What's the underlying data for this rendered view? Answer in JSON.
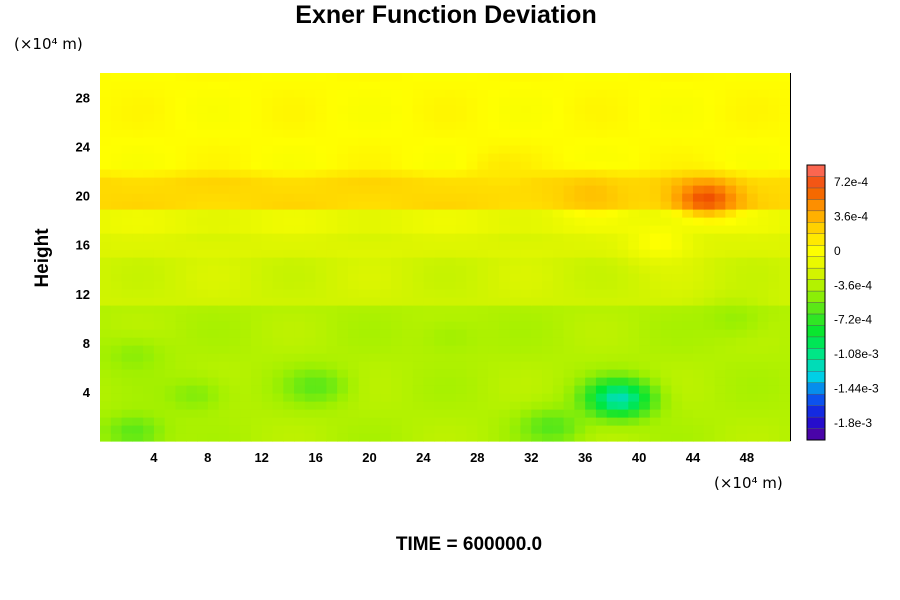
{
  "chart_data": {
    "type": "heatmap",
    "title": "Exner Function Deviation",
    "ylabel": "Height",
    "xlabel": "",
    "x_scale_label": "(×10⁴ m)",
    "y_scale_label": "(×10⁴ m)",
    "x_ticks": [
      4,
      8,
      12,
      16,
      20,
      24,
      28,
      32,
      36,
      40,
      44,
      48
    ],
    "y_ticks": [
      4,
      8,
      12,
      16,
      20,
      24,
      28
    ],
    "xlim": [
      0,
      51.2
    ],
    "ylim": [
      0,
      30
    ],
    "footer": "TIME = 600000.0",
    "colorbar": {
      "ticks": [
        {
          "value": 0.00072,
          "label": "7.2e-4"
        },
        {
          "value": 0.00036,
          "label": "3.6e-4"
        },
        {
          "value": 0,
          "label": "0"
        },
        {
          "value": -0.00036,
          "label": "-3.6e-4"
        },
        {
          "value": -0.00072,
          "label": "-7.2e-4"
        },
        {
          "value": -0.00108,
          "label": "-1.08e-3"
        },
        {
          "value": -0.00144,
          "label": "-1.44e-3"
        },
        {
          "value": -0.0018,
          "label": "-1.8e-3"
        }
      ],
      "range": [
        -0.00198,
        0.0009
      ],
      "colormap": [
        "#5a0096",
        "#1a10d8",
        "#0a5af0",
        "#00d2e6",
        "#00e68c",
        "#00e632",
        "#46e61e",
        "#a0f000",
        "#dcf500",
        "#ffff00",
        "#ffd200",
        "#ff9600",
        "#f05000",
        "#ff6e6e"
      ]
    },
    "field": {
      "background": -0.00025,
      "upper_layer": 2e-05,
      "bands": [
        {
          "y": [
            19,
            21.5
          ],
          "value": 0.0002
        },
        {
          "y": [
            17,
            19
          ],
          "value": -0.00012
        },
        {
          "y": [
            15,
            17
          ],
          "value": -0.0002
        },
        {
          "y": [
            0,
            11
          ],
          "value": -0.00036
        },
        {
          "y": [
            21.5,
            22.5
          ],
          "value": 0.0001
        }
      ],
      "features": [
        {
          "x": 38.5,
          "y": 3.5,
          "value": -0.0012
        },
        {
          "x": 45,
          "y": 19.8,
          "value": 0.00068
        },
        {
          "x": 36.5,
          "y": 20.2,
          "value": 0.0003
        },
        {
          "x": 30,
          "y": 22.2,
          "value": 0.00012
        },
        {
          "x": 16,
          "y": 4.5,
          "value": -0.0006
        },
        {
          "x": 7,
          "y": 3.8,
          "value": -0.0005
        },
        {
          "x": 2.5,
          "y": 7,
          "value": -0.00048
        },
        {
          "x": 33.5,
          "y": 1.2,
          "value": -0.00062
        },
        {
          "x": 2.5,
          "y": 0.8,
          "value": -0.0006
        },
        {
          "x": 47,
          "y": 10,
          "value": -0.00045
        },
        {
          "x": 41.5,
          "y": 16.3,
          "value": 2e-05
        },
        {
          "x": 26,
          "y": 8.5,
          "value": -0.00042
        }
      ]
    }
  }
}
